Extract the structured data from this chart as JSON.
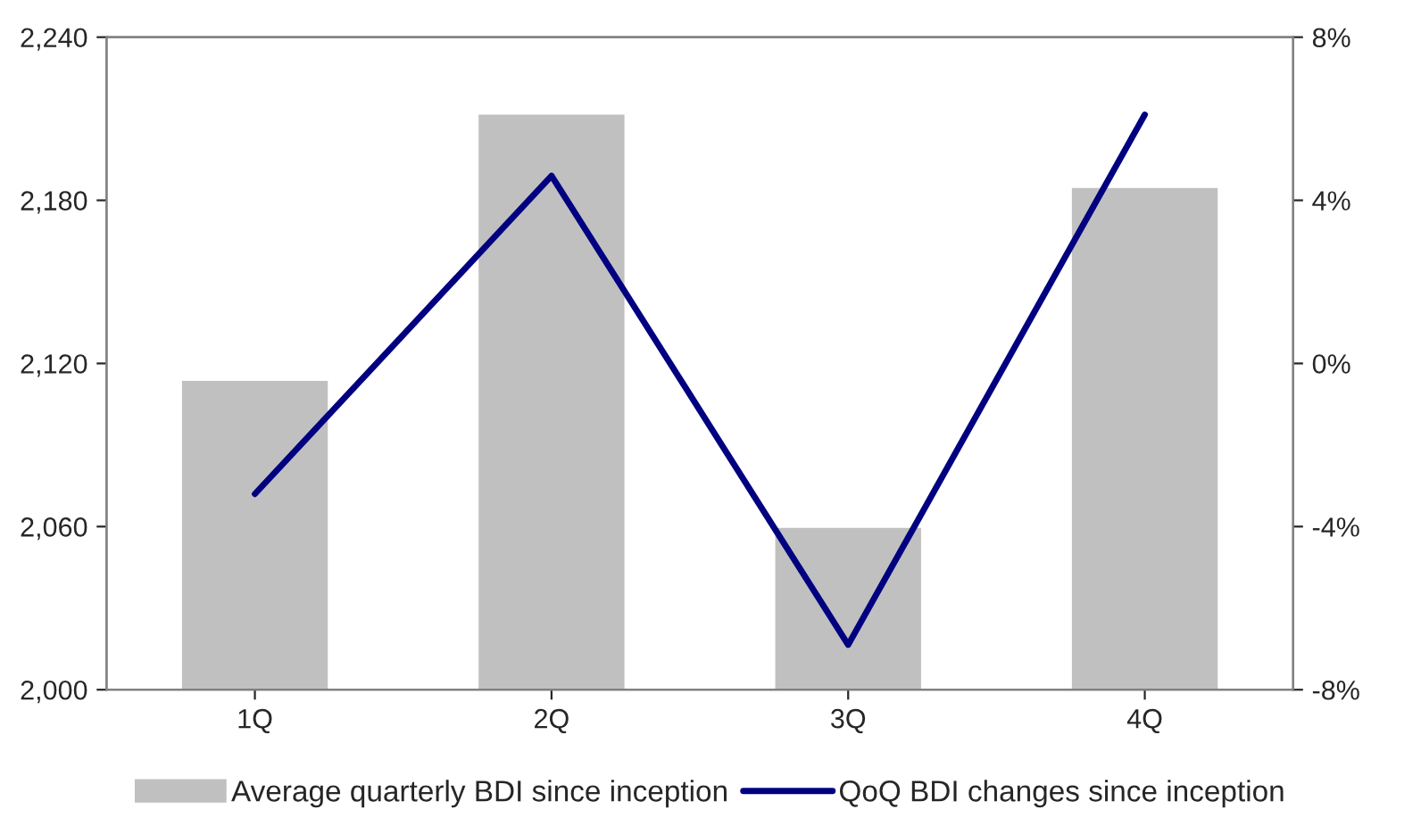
{
  "chart_data": {
    "type": "bar",
    "categories": [
      "1Q",
      "2Q",
      "3Q",
      "4Q"
    ],
    "series": [
      {
        "name": "Average quarterly BDI since inception",
        "color": "#c0c0c0",
        "values": [
          2114,
          2212,
          2060,
          2185
        ]
      },
      {
        "name": "QoQ BDI changes since inception",
        "color": "#000080",
        "type": "line",
        "axis": "y2",
        "values": [
          -3.2,
          4.6,
          -6.9,
          6.1
        ]
      }
    ],
    "ylim": [
      2000,
      2240
    ],
    "yticks": [
      {
        "value": 2000,
        "label": "2,000"
      },
      {
        "value": 2060,
        "label": "2,060"
      },
      {
        "value": 2120,
        "label": "2,120"
      },
      {
        "value": 2180,
        "label": "2,180"
      },
      {
        "value": 2240,
        "label": "2,240"
      }
    ],
    "y2lim": [
      -8,
      8
    ],
    "y2ticks": [
      {
        "value": -8,
        "label": "-8%"
      },
      {
        "value": -4,
        "label": "-4%"
      },
      {
        "value": 0,
        "label": "0%"
      },
      {
        "value": 4,
        "label": "4%"
      },
      {
        "value": 8,
        "label": "8%"
      }
    ],
    "legend": "bottom",
    "grid": false
  }
}
